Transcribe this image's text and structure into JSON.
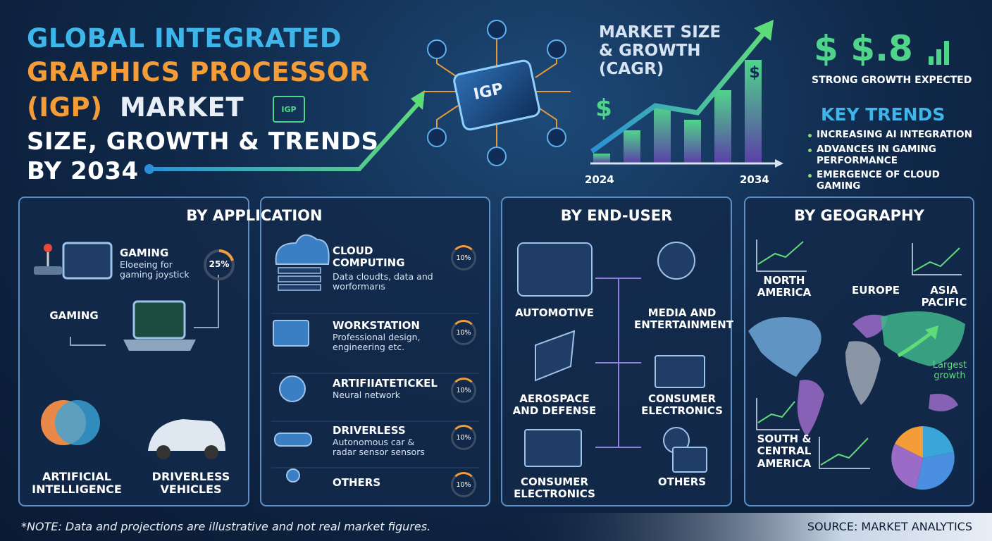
{
  "title": {
    "line1": "GLOBAL INTEGRATED",
    "line2": "GRAPHICS PROCESSOR",
    "line3a": "(IGP)",
    "line3b": "MARKET",
    "line4": "SIZE, GROWTH & TRENDS",
    "line5": "BY 2034"
  },
  "chip_label": "IGP",
  "badge_label": "IGP",
  "market": {
    "title_lines": [
      "MARKET SIZE",
      "& GROWTH",
      "(CAGR)"
    ],
    "start_label": "2024",
    "end_label": "2034"
  },
  "highlight": {
    "value": "$ $.8",
    "caption": "STRONG GROWTH EXPECTED"
  },
  "key_trends": {
    "title": "KEY TRENDS",
    "items": [
      "INCREASING AI INTEGRATION",
      "ADVANCES IN GAMING PERFORMANCE",
      "EMERGENCE OF CLOUD GAMING"
    ]
  },
  "application": {
    "title": "BY APPLICATION",
    "featured": {
      "title": "GAMING",
      "desc": "Eloeeing for gaming joystick",
      "share": "25%"
    },
    "gaming_label": "GAMING",
    "ai_label": "ARTIFICIAL INTELLIGENCE",
    "driverless_label": "DRIVERLESS VEHICLES",
    "items": [
      {
        "title": "CLOUD COMPUTING",
        "desc": "Data cloudts, data and worformarıs",
        "share": "10%"
      },
      {
        "title": "WORKSTATION",
        "desc": "Professional design, engineering etc.",
        "share": "10%"
      },
      {
        "title": "ARTIFIIATETICKEL",
        "desc": "Neural network",
        "share": "10%"
      },
      {
        "title": "DRIVERLESS",
        "desc": "Autonomous car & radar sensor sensors",
        "share": "10%"
      },
      {
        "title": "OTHERS",
        "desc": "",
        "share": "10%"
      }
    ]
  },
  "end_user": {
    "title": "BY END-USER",
    "items": [
      "AUTOMOTIVE",
      "MEDIA AND ENTERTAINMENT",
      "AEROSPACE AND DEFENSE",
      "CONSUMER ELECTRONICS",
      "CONSUMER ELECTRONICS",
      "OTHERS"
    ]
  },
  "geography": {
    "title": "BY GEOGRAPHY",
    "regions": [
      "NORTH AMERICA",
      "EUROPE",
      "ASIA PACIFIC",
      "SOUTH & CENTRAL AMERICA"
    ],
    "growth_note": "Largest growth"
  },
  "footer": {
    "note": "*NOTE: Data and projections are illustrative and not real market figures.",
    "source": "SOURCE: MARKET ANALYTICS"
  }
}
